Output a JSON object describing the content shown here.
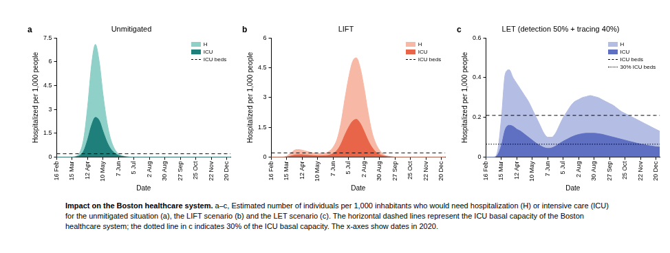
{
  "chart_data": [
    {
      "panel": "a",
      "type": "area",
      "title": "Unmitigated",
      "x_label": "Date",
      "y_label": "Hospitalized per 1,000 people",
      "categories": [
        "16 Feb",
        null,
        null,
        null,
        "15 Mar",
        null,
        null,
        null,
        "12 Apr",
        null,
        null,
        null,
        "10 May",
        null,
        null,
        null,
        "7 Jun",
        null,
        null,
        null,
        "5 Jul",
        null,
        null,
        null,
        "2 Aug",
        null,
        null,
        null,
        "30 Aug",
        null,
        null,
        null,
        "27 Sep",
        null,
        null,
        null,
        "25 Oct",
        null,
        null,
        null,
        "22 Nov",
        null,
        null,
        null,
        "20 Dec",
        null
      ],
      "ylim": [
        0,
        7.5
      ],
      "yticks": [
        0,
        1.5,
        3,
        4.5,
        6,
        7.5
      ],
      "grid": false,
      "legend": "top-right",
      "series": [
        {
          "name": "H",
          "type": "area",
          "color": "#8fd0c9",
          "values": [
            0,
            0,
            0,
            0,
            0,
            0.05,
            0.3,
            1.2,
            3.2,
            5.8,
            7.1,
            6.0,
            3.9,
            2.2,
            1.1,
            0.5,
            0.2,
            0.08,
            0.03,
            0,
            0,
            0,
            0,
            0,
            0,
            0,
            0,
            0,
            0,
            0,
            0,
            0,
            0,
            0,
            0,
            0,
            0,
            0,
            0,
            0,
            0,
            0,
            0,
            0,
            0,
            0
          ]
        },
        {
          "name": "ICU",
          "type": "area",
          "color": "#1f7f7a",
          "values": [
            0,
            0,
            0,
            0,
            0,
            0.02,
            0.1,
            0.4,
            1.1,
            2.0,
            2.5,
            2.3,
            1.6,
            0.95,
            0.5,
            0.25,
            0.1,
            0.04,
            0.01,
            0,
            0,
            0,
            0,
            0,
            0,
            0,
            0,
            0,
            0,
            0,
            0,
            0,
            0,
            0,
            0,
            0,
            0,
            0,
            0,
            0,
            0,
            0,
            0,
            0,
            0,
            0
          ]
        },
        {
          "name": "ICU beds",
          "type": "line",
          "line_style": "dashed",
          "color": "#000000",
          "values": [
            0.21,
            0.21,
            0.21,
            0.21,
            0.21,
            0.21,
            0.21,
            0.21,
            0.21,
            0.21,
            0.21,
            0.21,
            0.21,
            0.21,
            0.21,
            0.21,
            0.21,
            0.21,
            0.21,
            0.21,
            0.21,
            0.21,
            0.21,
            0.21,
            0.21,
            0.21,
            0.21,
            0.21,
            0.21,
            0.21,
            0.21,
            0.21,
            0.21,
            0.21,
            0.21,
            0.21,
            0.21,
            0.21,
            0.21,
            0.21,
            0.21,
            0.21,
            0.21,
            0.21,
            0.21,
            0.21
          ]
        }
      ]
    },
    {
      "panel": "b",
      "type": "area",
      "title": "LIFT",
      "x_label": "Date",
      "y_label": "Hospitalized per 1,000 people",
      "categories": [
        "16 Feb",
        null,
        null,
        null,
        "15 Mar",
        null,
        null,
        null,
        "12 Apr",
        null,
        null,
        null,
        "10 May",
        null,
        null,
        null,
        "7 Jun",
        null,
        null,
        null,
        "5 Jul",
        null,
        null,
        null,
        "2 Aug",
        null,
        null,
        null,
        "30 Aug",
        null,
        null,
        null,
        "27 Sep",
        null,
        null,
        null,
        "25 Oct",
        null,
        null,
        null,
        "22 Nov",
        null,
        null,
        null,
        "20 Dec",
        null
      ],
      "ylim": [
        0,
        6
      ],
      "yticks": [
        0,
        1.5,
        3,
        4.5,
        6
      ],
      "grid": false,
      "legend": "top-right",
      "series": [
        {
          "name": "H",
          "type": "area",
          "color": "#f7b9a6",
          "values": [
            0,
            0,
            0,
            0,
            0.05,
            0.2,
            0.35,
            0.38,
            0.35,
            0.3,
            0.25,
            0.2,
            0.18,
            0.18,
            0.2,
            0.3,
            0.5,
            0.9,
            1.7,
            2.9,
            4.0,
            4.8,
            5.0,
            4.5,
            3.5,
            2.3,
            1.3,
            0.7,
            0.35,
            0.15,
            0.06,
            0.02,
            0,
            0,
            0,
            0,
            0,
            0,
            0,
            0,
            0,
            0,
            0,
            0,
            0,
            0
          ]
        },
        {
          "name": "ICU",
          "type": "area",
          "color": "#e8654a",
          "values": [
            0,
            0,
            0,
            0,
            0.01,
            0.05,
            0.1,
            0.12,
            0.12,
            0.1,
            0.09,
            0.07,
            0.06,
            0.06,
            0.07,
            0.1,
            0.18,
            0.34,
            0.65,
            1.1,
            1.5,
            1.8,
            1.9,
            1.7,
            1.3,
            0.85,
            0.5,
            0.26,
            0.13,
            0.06,
            0.02,
            0.01,
            0,
            0,
            0,
            0,
            0,
            0,
            0,
            0,
            0,
            0,
            0,
            0,
            0,
            0
          ]
        },
        {
          "name": "ICU beds",
          "type": "line",
          "line_style": "dashed",
          "color": "#000000",
          "values": [
            0.21,
            0.21,
            0.21,
            0.21,
            0.21,
            0.21,
            0.21,
            0.21,
            0.21,
            0.21,
            0.21,
            0.21,
            0.21,
            0.21,
            0.21,
            0.21,
            0.21,
            0.21,
            0.21,
            0.21,
            0.21,
            0.21,
            0.21,
            0.21,
            0.21,
            0.21,
            0.21,
            0.21,
            0.21,
            0.21,
            0.21,
            0.21,
            0.21,
            0.21,
            0.21,
            0.21,
            0.21,
            0.21,
            0.21,
            0.21,
            0.21,
            0.21,
            0.21,
            0.21,
            0.21,
            0.21
          ]
        }
      ]
    },
    {
      "panel": "c",
      "type": "area",
      "title": "LET (detection 50% + tracing 40%)",
      "x_label": "Date",
      "y_label": "Hospitalized per 1,000 people",
      "categories": [
        "16 Feb",
        null,
        null,
        null,
        "15 Mar",
        null,
        null,
        null,
        "12 Apr",
        null,
        null,
        null,
        "10 May",
        null,
        null,
        null,
        "7 Jun",
        null,
        null,
        null,
        "5 Jul",
        null,
        null,
        null,
        "2 Aug",
        null,
        null,
        null,
        "30 Aug",
        null,
        null,
        null,
        "27 Sep",
        null,
        null,
        null,
        "25 Oct",
        null,
        null,
        null,
        "22 Nov",
        null,
        null,
        null,
        "20 Dec",
        null
      ],
      "ylim": [
        0,
        0.6
      ],
      "yticks": [
        0,
        0.2,
        0.4,
        0.6
      ],
      "grid": false,
      "legend": "top-right",
      "series": [
        {
          "name": "H",
          "type": "area",
          "color": "#b4bde3",
          "values": [
            0,
            0,
            0,
            0.03,
            0.2,
            0.42,
            0.44,
            0.4,
            0.37,
            0.34,
            0.31,
            0.28,
            0.24,
            0.2,
            0.16,
            0.12,
            0.1,
            0.1,
            0.12,
            0.16,
            0.2,
            0.23,
            0.26,
            0.28,
            0.29,
            0.3,
            0.305,
            0.31,
            0.305,
            0.3,
            0.29,
            0.28,
            0.27,
            0.26,
            0.245,
            0.23,
            0.22,
            0.21,
            0.2,
            0.19,
            0.18,
            0.17,
            0.16,
            0.15,
            0.14,
            0.13
          ]
        },
        {
          "name": "ICU",
          "type": "area",
          "color": "#5f70c2",
          "values": [
            0,
            0,
            0,
            0.01,
            0.06,
            0.14,
            0.16,
            0.155,
            0.14,
            0.13,
            0.115,
            0.1,
            0.085,
            0.07,
            0.058,
            0.048,
            0.044,
            0.046,
            0.055,
            0.068,
            0.08,
            0.09,
            0.1,
            0.108,
            0.114,
            0.118,
            0.12,
            0.12,
            0.12,
            0.118,
            0.115,
            0.11,
            0.105,
            0.1,
            0.095,
            0.09,
            0.085,
            0.08,
            0.075,
            0.07,
            0.066,
            0.062,
            0.058,
            0.055,
            0.052,
            0.05
          ]
        },
        {
          "name": "ICU beds",
          "type": "line",
          "line_style": "dashed",
          "color": "#000000",
          "values": [
            0.21,
            0.21,
            0.21,
            0.21,
            0.21,
            0.21,
            0.21,
            0.21,
            0.21,
            0.21,
            0.21,
            0.21,
            0.21,
            0.21,
            0.21,
            0.21,
            0.21,
            0.21,
            0.21,
            0.21,
            0.21,
            0.21,
            0.21,
            0.21,
            0.21,
            0.21,
            0.21,
            0.21,
            0.21,
            0.21,
            0.21,
            0.21,
            0.21,
            0.21,
            0.21,
            0.21,
            0.21,
            0.21,
            0.21,
            0.21,
            0.21,
            0.21,
            0.21,
            0.21,
            0.21,
            0.21
          ]
        },
        {
          "name": "30% ICU beds",
          "type": "line",
          "line_style": "dotted",
          "color": "#000000",
          "values": [
            0.065,
            0.065,
            0.065,
            0.065,
            0.065,
            0.065,
            0.065,
            0.065,
            0.065,
            0.065,
            0.065,
            0.065,
            0.065,
            0.065,
            0.065,
            0.065,
            0.065,
            0.065,
            0.065,
            0.065,
            0.065,
            0.065,
            0.065,
            0.065,
            0.065,
            0.065,
            0.065,
            0.065,
            0.065,
            0.065,
            0.065,
            0.065,
            0.065,
            0.065,
            0.065,
            0.065,
            0.065,
            0.065,
            0.065,
            0.065,
            0.065,
            0.065,
            0.065,
            0.065,
            0.065,
            0.065
          ]
        }
      ]
    }
  ],
  "caption": {
    "title": "Impact on the Boston healthcare system.",
    "text": "a–c, Estimated number of individuals per 1,000 inhabitants who would need hospitalization (H) or intensive care (ICU) for the unmitigated situation (a), the LIFT scenario (b) and the LET scenario (c). The horizontal dashed lines represent the ICU basal capacity of the Boston healthcare system; the dotted line in c indicates 30% of the ICU basal capacity. The x-axes show dates in 2020."
  }
}
